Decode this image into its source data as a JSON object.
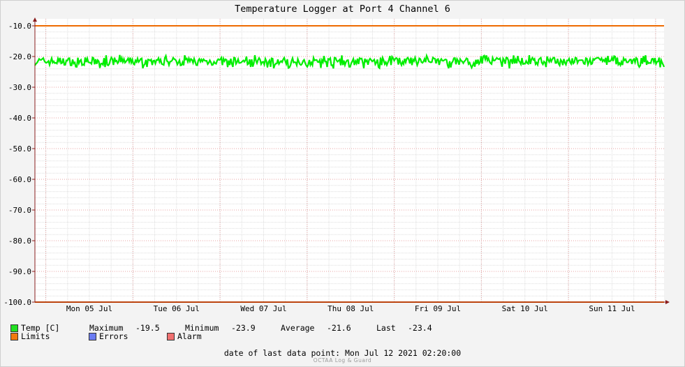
{
  "title": "Temperature Logger at Port 4 Channel 6",
  "chart_data": {
    "type": "line",
    "ylim": [
      -100,
      -10
    ],
    "y_ticks": [
      "-10.0",
      "-20.0",
      "-30.0",
      "-40.0",
      "-50.0",
      "-60.0",
      "-70.0",
      "-80.0",
      "-90.0",
      "-100.0"
    ],
    "x_ticks": [
      "Mon 05 Jul",
      "Tue 06 Jul",
      "Wed 07 Jul",
      "Thu 08 Jul",
      "Fri 09 Jul",
      "Sat 10 Jul",
      "Sun 11 Jul"
    ],
    "x_range": [
      "2021-07-04 21:00",
      "2021-07-12 02:20"
    ],
    "grid": true,
    "series": [
      {
        "name": "Temp [C]",
        "color": "#00ee00",
        "min": -23.9,
        "max": -19.5,
        "mean": -21.6,
        "last": -23.4
      },
      {
        "name": "Limits",
        "color": "#ee6a00",
        "values": [
          -10,
          -100
        ]
      }
    ]
  },
  "legend": {
    "temp_label": "Temp [C]",
    "max_label": "Maximum",
    "max_value": "-19.5",
    "min_label": "Minimum",
    "min_value": "-23.9",
    "avg_label": "Average",
    "avg_value": "-21.6",
    "last_label": "Last",
    "last_value": "-23.4",
    "limits_label": "Limits",
    "errors_label": "Errors",
    "alarm_label": "Alarm",
    "colors": {
      "temp": "#22e022",
      "limits": "#f07a10",
      "errors": "#6b7cf2",
      "alarm": "#f07070"
    }
  },
  "footer": {
    "last_point_label": "date of last data point:",
    "last_point_value": "Mon Jul 12 2021 02:20:00",
    "watermark": "OCTAA Log & Guard"
  }
}
